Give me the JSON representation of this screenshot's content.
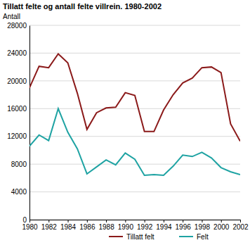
{
  "chart_data": {
    "type": "line",
    "title": "Tillatt felte og antall felte villrein. 1980-2002",
    "y_label": "Antall",
    "x": [
      1980,
      1981,
      1982,
      1983,
      1984,
      1985,
      1986,
      1987,
      1988,
      1989,
      1990,
      1991,
      1992,
      1993,
      1994,
      1995,
      1996,
      1997,
      1998,
      1999,
      2000,
      2001,
      2002
    ],
    "series": [
      {
        "name": "Tillatt felt",
        "color": "#8b1a1a",
        "values": [
          19000,
          22100,
          21900,
          23900,
          22600,
          18200,
          13000,
          15400,
          16100,
          16200,
          18300,
          17900,
          12700,
          12700,
          15800,
          18000,
          19700,
          20400,
          21900,
          22000,
          21200,
          13800,
          11300
        ]
      },
      {
        "name": "Felt",
        "color": "#1fa3a3",
        "values": [
          10600,
          12200,
          11400,
          16000,
          12600,
          10200,
          6600,
          7600,
          8600,
          7900,
          9600,
          8700,
          6400,
          6500,
          6400,
          7700,
          9300,
          9100,
          9700,
          8900,
          7500,
          6900,
          6500
        ]
      }
    ],
    "xlim": [
      1980,
      2002
    ],
    "xticks": [
      1980,
      1982,
      1984,
      1986,
      1988,
      1990,
      1992,
      1994,
      1996,
      1998,
      2000,
      2002
    ],
    "ylim": [
      0,
      28000
    ],
    "yticks": [
      0,
      4000,
      8000,
      12000,
      16000,
      20000,
      24000,
      28000
    ],
    "grid": true,
    "legend": "bottom"
  }
}
